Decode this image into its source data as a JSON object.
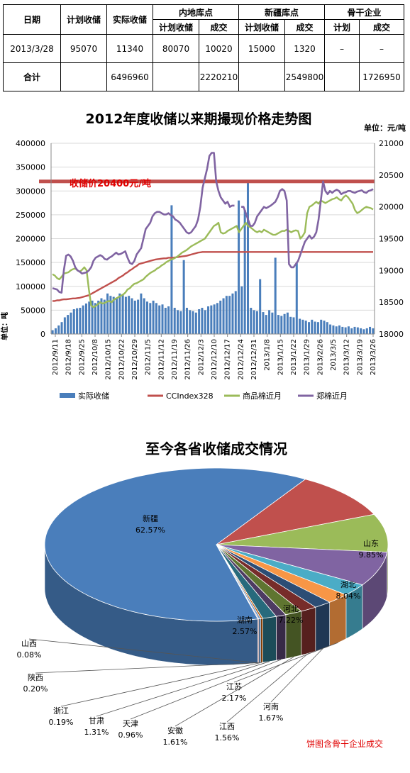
{
  "table": {
    "head": {
      "date": "日期",
      "plan": "计划收储",
      "actual": "实际收储",
      "inland": "内地库点",
      "xinjiang": "新疆库点",
      "backbone": "骨干企业",
      "sub_plan": "计划收储",
      "sub_deal": "成交",
      "sub_plan2": "计划收储",
      "sub_deal2": "成交",
      "sub_plan3": "计划",
      "sub_deal3": "成交"
    },
    "rows": [
      [
        "2013/3/28",
        "95070",
        "11340",
        "80070",
        "10020",
        "15000",
        "1320",
        "–",
        "–"
      ],
      [
        "合计",
        "",
        "6496960",
        "",
        "2220210",
        "",
        "2549800",
        "",
        "1726950"
      ]
    ]
  },
  "chart_data": [
    {
      "type": "bar+line",
      "title": "2012年度收储以来期撮现价格走势图",
      "unit_label": "单位：元/吨",
      "ylabel_left": "单位：吨",
      "left_axis": {
        "ylim": [
          0,
          400000
        ],
        "ticks": [
          "0",
          "50000",
          "100000",
          "150000",
          "200000",
          "250000",
          "300000",
          "350000",
          "400000"
        ]
      },
      "right_axis": {
        "ylim": [
          18000,
          21000
        ],
        "ticks": [
          "18000",
          "18500",
          "19000",
          "19500",
          "20000",
          "20500",
          "21000"
        ]
      },
      "x_ticks": [
        "2012/9/11",
        "2012/9/18",
        "2012/9/25",
        "2012/10/8",
        "2012/10/15",
        "2012/10/22",
        "2012/10/29",
        "2012/11/5",
        "2012/11/12",
        "2012/11/19",
        "2012/11/26",
        "2012/12/3",
        "2012/12/10",
        "2012/12/17",
        "2012/12/24",
        "2012/12/31",
        "2013/1/8",
        "2013/1/15",
        "2013/1/22",
        "2013/1/29",
        "2013/2/26",
        "2013/3/5",
        "2013/3/12",
        "2013/3/19",
        "2013/3/26"
      ],
      "annotation": "收储价20400元/吨",
      "reference_price": 20400,
      "legend": [
        "实际收储",
        "CCIndex328",
        "商品棉近月",
        "郑棉近月"
      ],
      "colors": {
        "bar": "#4A7EBB",
        "ccindex": "#C0504D",
        "spot": "#9BBB59",
        "zhengzhou": "#8064A2",
        "refline": "#C0504D",
        "annotation": "#E00000"
      },
      "series": [
        {
          "name": "实际收储",
          "axis": "left",
          "values": [
            8000,
            12000,
            18000,
            25000,
            35000,
            40000,
            45000,
            52000,
            54000,
            55000,
            60000,
            64000,
            68000,
            70000,
            65000,
            70000,
            75000,
            72000,
            85000,
            80000,
            78000,
            75000,
            85000,
            82000,
            78000,
            80000,
            75000,
            70000,
            72000,
            85000,
            75000,
            68000,
            65000,
            70000,
            65000,
            60000,
            62000,
            55000,
            58000,
            270000,
            55000,
            50000,
            48000,
            155000,
            55000,
            50000,
            48000,
            45000,
            52000,
            55000,
            50000,
            58000,
            60000,
            62000,
            65000,
            70000,
            75000,
            80000,
            80000,
            85000,
            90000,
            280000,
            100000,
            260000,
            320000,
            55000,
            50000,
            48000,
            115000,
            46000,
            40000,
            50000,
            45000,
            160000,
            40000,
            38000,
            42000,
            45000,
            36000,
            35000,
            150000,
            32000,
            30000,
            28000,
            25000,
            30000,
            26000,
            25000,
            30000,
            28000,
            25000,
            20000,
            18000,
            16000,
            18000,
            15000,
            14000,
            16000,
            12000,
            15000,
            14000,
            12000,
            10000,
            12000,
            15000,
            12000
          ]
        },
        {
          "name": "CCIndex328",
          "axis": "right",
          "values": [
            18520,
            18520,
            18530,
            18530,
            18540,
            18545,
            18545,
            18550,
            18555,
            18560,
            18560,
            18565,
            18570,
            18580,
            18590,
            18600,
            18610,
            18630,
            18650,
            18670,
            18690,
            18710,
            18730,
            18750,
            18770,
            18790,
            18810,
            18830,
            18850,
            18880,
            18900,
            18920,
            18950,
            18970,
            19000,
            19020,
            19050,
            19070,
            19100,
            19110,
            19120,
            19130,
            19140,
            19150,
            19160,
            19170,
            19175,
            19180,
            19185,
            19190,
            19190,
            19200,
            19200,
            19200,
            19205,
            19210,
            19215,
            19220,
            19225,
            19230,
            19240,
            19250,
            19260,
            19270,
            19280,
            19285,
            19290,
            19290,
            19290,
            19290,
            19290,
            19290,
            19290,
            19290,
            19290,
            19290,
            19290,
            19290,
            19290,
            19290,
            19290,
            19290,
            19290,
            19290,
            19290,
            19290,
            19290,
            19290,
            19290,
            19290,
            19290,
            19290,
            19290,
            19290,
            19290,
            19290,
            19290,
            19290,
            19290,
            19290,
            19290,
            19290,
            19290,
            19290,
            19290,
            19290,
            19290,
            19290,
            19290,
            19290,
            19290,
            19290,
            19290,
            19290,
            19290,
            19290,
            19290,
            19290,
            19290,
            19290,
            19290,
            19290,
            19290,
            19290,
            19290,
            19290,
            19290,
            19290,
            19290,
            19290,
            19290,
            19290,
            19290,
            19290,
            19290,
            19290,
            19290,
            19290,
            19290,
            19290,
            19290,
            19290
          ]
        },
        {
          "name": "商品棉近月",
          "axis": "right",
          "values": [
            18940,
            18920,
            18880,
            18860,
            18900,
            18950,
            18960,
            18970,
            19000,
            19020,
            19030,
            19000,
            18980,
            19010,
            19050,
            19000,
            18700,
            18450,
            18420,
            18440,
            18470,
            18500,
            18480,
            18490,
            18510,
            18520,
            18500,
            18540,
            18560,
            18580,
            18600,
            18620,
            18650,
            18700,
            18720,
            18760,
            18790,
            18800,
            18820,
            18840,
            18860,
            18900,
            18930,
            18960,
            18980,
            19000,
            19030,
            19050,
            19080,
            19100,
            19130,
            19150,
            19170,
            19180,
            19200,
            19220,
            19250,
            19280,
            19300,
            19320,
            19350,
            19380,
            19400,
            19420,
            19440,
            19460,
            19480,
            19500,
            19550,
            19600,
            19650,
            19700,
            19720,
            19750,
            19600,
            19580,
            19590,
            19620,
            19640,
            19660,
            19680,
            19700,
            19600,
            19650,
            19700,
            19750,
            19700,
            19680,
            19650,
            19620,
            19600,
            19620,
            19600,
            19640,
            19620,
            19600,
            19580,
            19560,
            19560,
            19580,
            19600,
            19620,
            19620,
            19640,
            19620,
            19600,
            19620,
            19630,
            19620,
            19500,
            19540,
            19600,
            19900,
            20000,
            20020,
            20050,
            20080,
            20050,
            20100,
            20080,
            20060,
            20080,
            20100,
            20120,
            20130,
            20150,
            20120,
            20100,
            20150,
            20180,
            20150,
            20100,
            20050,
            19950,
            19900,
            19920,
            19950,
            19980,
            20000,
            19990,
            19980,
            19960
          ]
        },
        {
          "name": "郑棉近月",
          "axis": "right",
          "values": [
            18720,
            18710,
            18700,
            18660,
            18650,
            19000,
            19230,
            19250,
            19220,
            19150,
            19050,
            19000,
            18980,
            18950,
            18960,
            18970,
            19000,
            19050,
            19150,
            19200,
            19220,
            19240,
            19220,
            19180,
            19170,
            19200,
            19220,
            19250,
            19280,
            19250,
            19260,
            19280,
            19300,
            19200,
            19120,
            19100,
            19150,
            19250,
            19300,
            19350,
            19500,
            19650,
            19700,
            19750,
            19850,
            19900,
            19920,
            19920,
            19900,
            19880,
            19880,
            19900,
            19870,
            19850,
            19800,
            19780,
            19750,
            19700,
            19650,
            19600,
            19580,
            19600,
            19650,
            19700,
            19800,
            20000,
            20300,
            20450,
            20600,
            20800,
            20850,
            20850,
            20400,
            20250,
            20150,
            20100,
            20050,
            20080,
            20000,
            20020,
            20020,
            null,
            null,
            20000,
            20000,
            19900,
            19800,
            19700,
            19700,
            19750,
            19850,
            19900,
            19950,
            20000,
            19980,
            20000,
            20020,
            20050,
            20080,
            20150,
            20250,
            20280,
            20250,
            20100,
            19100,
            19050,
            19050,
            19100,
            19150,
            19250,
            19350,
            19450,
            19500,
            19550,
            19500,
            19530,
            19600,
            19800,
            20100,
            20400,
            20250,
            20200,
            20250,
            20220,
            20250,
            20270,
            20250,
            20200,
            20220,
            20230,
            20250,
            20250,
            20230,
            20220,
            20240,
            20250,
            20260,
            20230,
            20220,
            20250,
            20260,
            20280
          ]
        }
      ]
    },
    {
      "type": "pie",
      "title": "至今各省收储成交情况",
      "note": "饼图含骨干企业成交",
      "slices": [
        {
          "label": "新疆",
          "value": 62.57,
          "text": "62.57%",
          "color": "#4A7EBB"
        },
        {
          "label": "山东",
          "value": 9.85,
          "text": "9.85%",
          "color": "#C0504D"
        },
        {
          "label": "湖北",
          "value": 8.04,
          "text": "8.04%",
          "color": "#9BBB59"
        },
        {
          "label": "河北",
          "value": 7.22,
          "text": "7.22%",
          "color": "#8064A2"
        },
        {
          "label": "湖南",
          "value": 2.57,
          "text": "2.57%",
          "color": "#4BACC6"
        },
        {
          "label": "江苏",
          "value": 2.17,
          "text": "2.17%",
          "color": "#F79646"
        },
        {
          "label": "河南",
          "value": 1.67,
          "text": "1.67%",
          "color": "#2C4D75"
        },
        {
          "label": "江西",
          "value": 1.56,
          "text": "1.56%",
          "color": "#772C2A"
        },
        {
          "label": "安徽",
          "value": 1.61,
          "text": "1.61%",
          "color": "#5F7530"
        },
        {
          "label": "天津",
          "value": 0.96,
          "text": "0.96%",
          "color": "#4D3B62"
        },
        {
          "label": "甘肃",
          "value": 1.31,
          "text": "1.31%",
          "color": "#276A7C"
        },
        {
          "label": "浙江",
          "value": 0.19,
          "text": "0.19%",
          "color": "#B65708"
        },
        {
          "label": "陕西",
          "value": 0.2,
          "text": "0.20%",
          "color": "#729ACA"
        },
        {
          "label": "山西",
          "value": 0.08,
          "text": "0.08%",
          "color": "#CD7371"
        }
      ]
    }
  ]
}
